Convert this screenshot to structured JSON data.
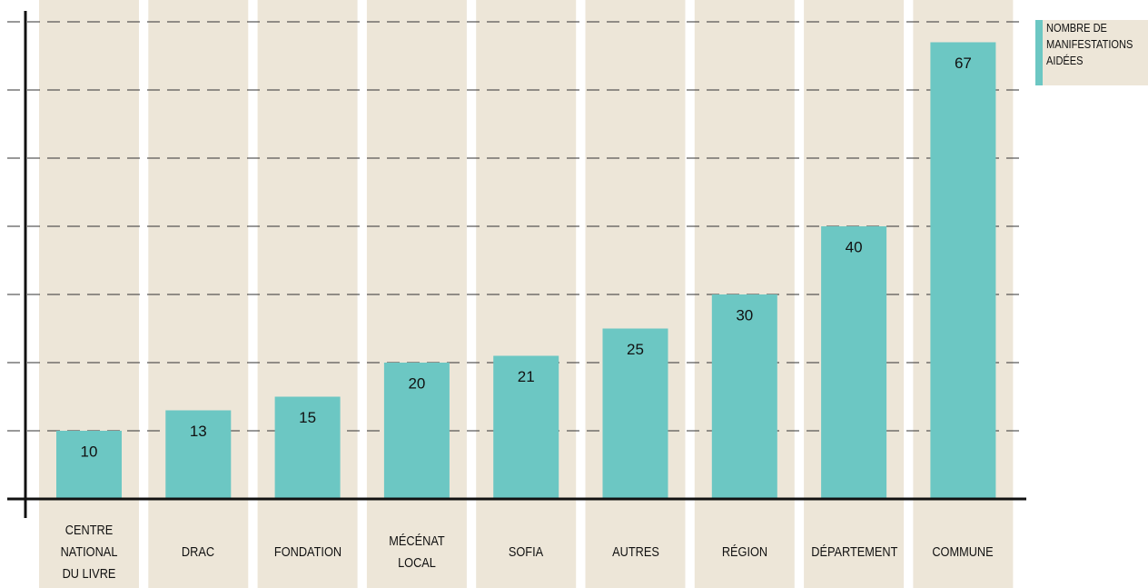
{
  "chart_data": {
    "type": "bar",
    "categories": [
      "CENTRE\nNATIONAL\nDU LIVRE",
      "DRAC",
      "FONDATION",
      "MÉCÉNAT\nLOCAL",
      "SOFIA",
      "AUTRES",
      "RÉGION",
      "DÉPARTEMENT",
      "COMMUNE"
    ],
    "series": [
      {
        "name": "NOMBRE DE\nMANIFESTATIONS\nAIDÉES",
        "color": "#6cc7c3",
        "values": [
          10,
          13,
          15,
          20,
          21,
          25,
          30,
          40,
          67
        ]
      }
    ],
    "ylim": [
      0,
      70
    ],
    "yticks": [
      10,
      20,
      30,
      40,
      50,
      60,
      70
    ],
    "grid": true,
    "show_tick_labels": false,
    "legend": "top-right"
  }
}
